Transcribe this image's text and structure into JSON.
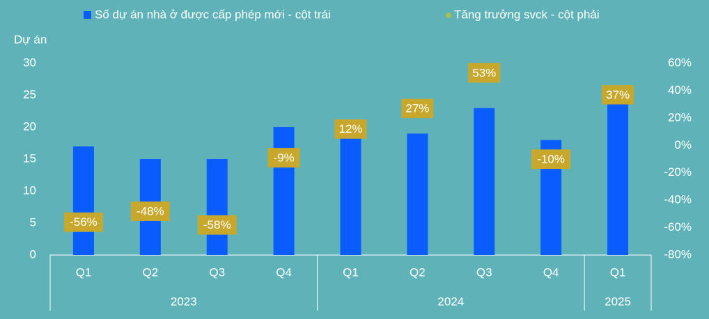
{
  "chart_data": {
    "type": "bar_line",
    "y_axis_label": "Dự án",
    "categories": [
      "Q1",
      "Q2",
      "Q3",
      "Q4",
      "Q1",
      "Q2",
      "Q3",
      "Q4",
      "Q1"
    ],
    "x_groups": [
      {
        "label": "2023",
        "count": 4
      },
      {
        "label": "2024",
        "count": 4
      },
      {
        "label": "2025",
        "count": 1
      }
    ],
    "series": [
      {
        "name": "Số dự án nhà ở được cấp phép mới - cột trái",
        "color": "#0a5cff",
        "values": [
          17,
          15,
          15,
          20,
          19,
          19,
          23,
          18,
          26
        ]
      },
      {
        "name": "Tăng trưởng svck - cột phải",
        "color": "#a9c04a",
        "label_color": "#c8a82c",
        "axis": "y2",
        "values": [
          -56,
          -48,
          -58,
          -9,
          12,
          27,
          53,
          -10,
          37
        ],
        "value_labels": [
          "-56%",
          "-48%",
          "-58%",
          "-9%",
          "12%",
          "27%",
          "53%",
          "-10%",
          "37%"
        ]
      }
    ],
    "ylim": [
      0,
      30
    ],
    "yticks": [
      0,
      5,
      10,
      15,
      20,
      25,
      30
    ],
    "y2lim": [
      -80,
      60
    ],
    "y2ticks": [
      {
        "value": -80,
        "label": "-80%"
      },
      {
        "value": -60,
        "label": "-60%"
      },
      {
        "value": -40,
        "label": "-40%"
      },
      {
        "value": -20,
        "label": "-20%"
      },
      {
        "value": 0,
        "label": "0%"
      },
      {
        "value": 20,
        "label": "20%"
      },
      {
        "value": 40,
        "label": "40%"
      },
      {
        "value": 60,
        "label": "60%"
      }
    ]
  }
}
